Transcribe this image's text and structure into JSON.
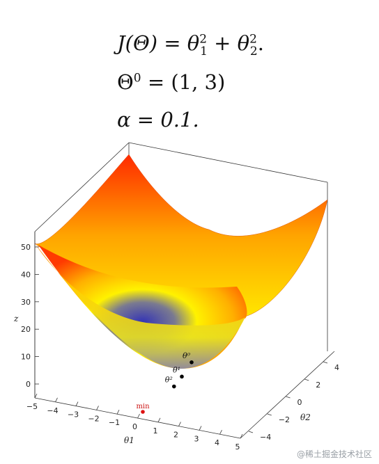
{
  "formulas": {
    "cost": {
      "lhs": "J(Θ) = θ",
      "sup1": "2",
      "sub1": "1",
      "mid": " + θ",
      "sup2": "2",
      "sub2": "2",
      "tail": "."
    },
    "init": {
      "lhs": "Θ",
      "sup": "0",
      "rhs": " = (1, 3)"
    },
    "rate": {
      "text": "α = 0.1."
    }
  },
  "chart_data": {
    "type": "surface",
    "function": "z = θ1^2 + θ2^2",
    "x_label": "θ1",
    "y_label": "θ2",
    "z_label": "z",
    "x_range": [
      -5,
      5
    ],
    "y_range": [
      -5,
      5
    ],
    "x_ticks": [
      "−5",
      "−4",
      "−3",
      "−2",
      "−1",
      "0",
      "1",
      "2",
      "3",
      "4",
      "5"
    ],
    "y_ticks": [
      "−4",
      "−2",
      "0",
      "2",
      "4"
    ],
    "z_ticks": [
      "0",
      "10",
      "20",
      "30",
      "40",
      "50"
    ],
    "colormap": [
      "#3333bb",
      "#ffff00",
      "#ff9900",
      "#ff2200"
    ],
    "points": [
      {
        "label": "θ⁰",
        "theta1": 1,
        "theta2": 3,
        "color": "#000000"
      },
      {
        "label": "θ¹",
        "theta1": 0.8,
        "theta2": 2.4,
        "color": "#000000"
      },
      {
        "label": "θ²",
        "theta1": 0.64,
        "theta2": 1.92,
        "color": "#000000"
      },
      {
        "label": "min",
        "theta1": 0,
        "theta2": 0,
        "color": "#dd1111"
      }
    ]
  },
  "watermark": "@稀土掘金技术社区"
}
